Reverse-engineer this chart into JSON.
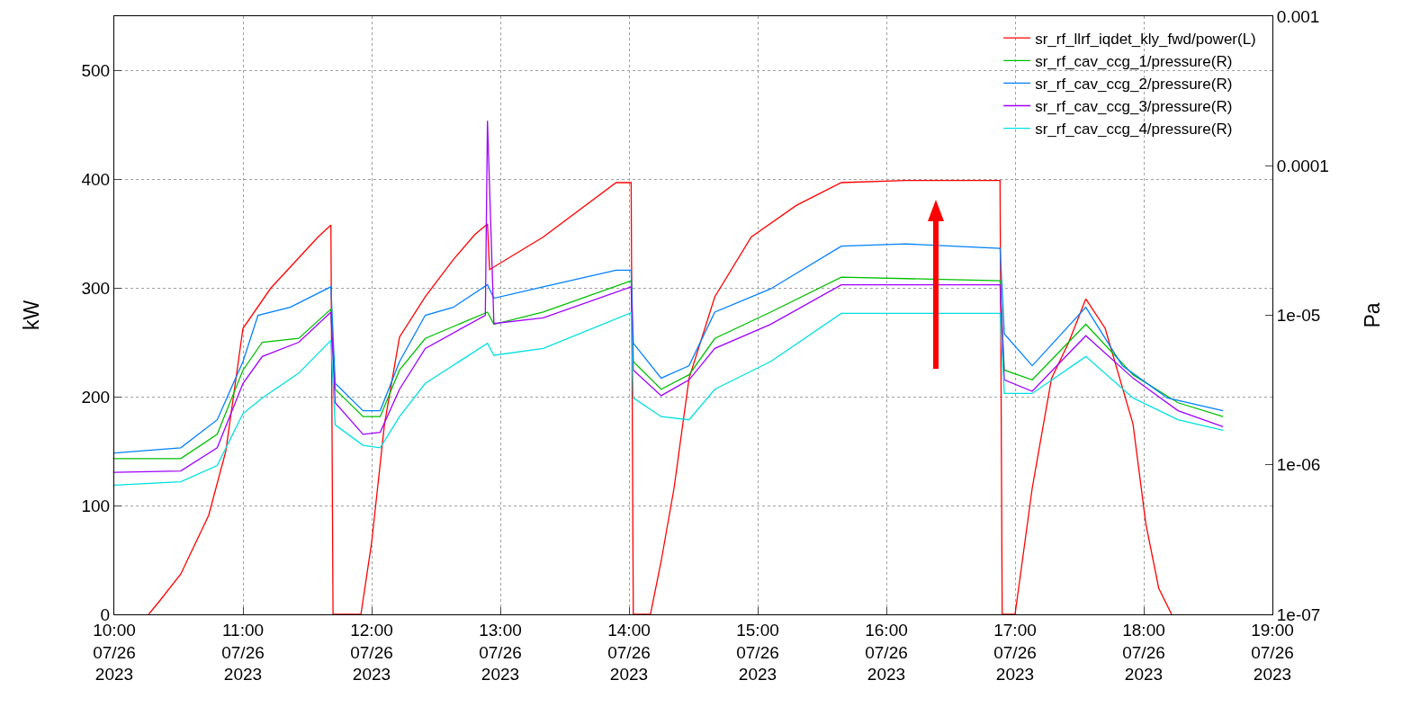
{
  "chart_data": {
    "type": "line",
    "ylabel": "kW",
    "y2label": "Pa",
    "grid": true,
    "legend": "top right",
    "line_style": "solid",
    "marker": "none",
    "log": "y2",
    "xlim": [
      "2023-07-26T10:00",
      "2023-07-26T19:00"
    ],
    "xticks": [
      {
        "value": "2023-07-26T10:00",
        "label": "10:00\n07/26\n2023"
      },
      {
        "value": "2023-07-26T11:00",
        "label": "11:00\n07/26\n2023"
      },
      {
        "value": "2023-07-26T12:00",
        "label": "12:00\n07/26\n2023"
      },
      {
        "value": "2023-07-26T13:00",
        "label": "13:00\n07/26\n2023"
      },
      {
        "value": "2023-07-26T14:00",
        "label": "14:00\n07/26\n2023"
      },
      {
        "value": "2023-07-26T15:00",
        "label": "15:00\n07/26\n2023"
      },
      {
        "value": "2023-07-26T16:00",
        "label": "16:00\n07/26\n2023"
      },
      {
        "value": "2023-07-26T17:00",
        "label": "17:00\n07/26\n2023"
      },
      {
        "value": "2023-07-26T18:00",
        "label": "18:00\n07/26\n2023"
      },
      {
        "value": "2023-07-26T19:00",
        "label": "19:00\n07/26\n2023"
      }
    ],
    "ylim": [
      0,
      550
    ],
    "yticks": [
      0,
      100,
      200,
      300,
      400,
      500
    ],
    "y2lim": [
      1e-07,
      0.001
    ],
    "y2ticks": [
      {
        "value": 1e-07,
        "label": "1e-07"
      },
      {
        "value": 1e-06,
        "label": "1e-06"
      },
      {
        "value": 1e-05,
        "label": "1e-05"
      },
      {
        "value": 0.0001,
        "label": "0.0001"
      },
      {
        "value": 0.001,
        "label": "0.001"
      }
    ],
    "series": [
      {
        "name": "sr_rf_llrf_iqdet_kly_fwd/power(L)",
        "color": "#ff0000",
        "x": [
          "2023-07-26T10:16",
          "2023-07-26T10:21",
          "2023-07-26T10:31",
          "2023-07-26T10:44",
          "2023-07-26T10:52",
          "2023-07-26T11:00",
          "2023-07-26T11:13",
          "2023-07-26T11:35",
          "2023-07-26T11:41",
          "2023-07-26T11:42",
          "2023-07-26T11:55",
          "2023-07-26T12:00",
          "2023-07-26T12:06",
          "2023-07-26T12:13",
          "2023-07-26T12:25",
          "2023-07-26T12:38",
          "2023-07-26T12:48",
          "2023-07-26T12:54",
          "2023-07-26T12:55",
          "2023-07-26T13:20",
          "2023-07-26T13:54",
          "2023-07-26T14:01",
          "2023-07-26T14:02",
          "2023-07-26T14:10",
          "2023-07-26T14:15",
          "2023-07-26T14:21",
          "2023-07-26T14:28",
          "2023-07-26T14:40",
          "2023-07-26T14:57",
          "2023-07-26T15:18",
          "2023-07-26T15:39",
          "2023-07-26T16:09",
          "2023-07-26T16:53",
          "2023-07-26T16:54",
          "2023-07-26T17:00",
          "2023-07-26T17:08",
          "2023-07-26T17:17",
          "2023-07-26T17:25",
          "2023-07-26T17:33",
          "2023-07-26T17:42",
          "2023-07-26T17:55",
          "2023-07-26T18:01",
          "2023-07-26T18:07",
          "2023-07-26T18:13"
        ],
        "values": [
          0,
          12,
          37,
          91,
          150,
          263,
          300,
          347,
          358,
          0,
          0,
          66,
          175,
          255,
          292,
          326,
          349,
          359,
          317,
          347,
          397,
          397,
          0,
          0,
          49,
          116,
          217,
          292,
          347,
          376,
          397,
          399,
          399,
          0,
          0,
          116,
          217,
          250,
          290,
          263,
          175,
          83,
          24,
          0
        ]
      },
      {
        "name": "sr_rf_cav_ccg_1/pressure(R)",
        "color": "#00c000",
        "axis": "y2",
        "x": [
          "2023-07-26T10:00",
          "2023-07-26T10:31",
          "2023-07-26T10:48",
          "2023-07-26T11:00",
          "2023-07-26T11:09",
          "2023-07-26T11:26",
          "2023-07-26T11:41",
          "2023-07-26T11:43",
          "2023-07-26T11:56",
          "2023-07-26T12:04",
          "2023-07-26T12:13",
          "2023-07-26T12:25",
          "2023-07-26T12:54",
          "2023-07-26T12:57",
          "2023-07-26T13:20",
          "2023-07-26T14:01",
          "2023-07-26T14:02",
          "2023-07-26T14:15",
          "2023-07-26T14:28",
          "2023-07-26T14:40",
          "2023-07-26T15:06",
          "2023-07-26T15:39",
          "2023-07-26T16:53",
          "2023-07-26T16:55",
          "2023-07-26T17:08",
          "2023-07-26T17:33",
          "2023-07-26T17:55",
          "2023-07-26T18:16",
          "2023-07-26T18:37"
        ],
        "values": [
          1.1e-06,
          1.1e-06,
          1.6e-06,
          4.3e-06,
          6.6e-06,
          7e-06,
          1.1e-05,
          3.2e-06,
          2.1e-06,
          2.1e-06,
          4.3e-06,
          7e-06,
          1.05e-05,
          8.7e-06,
          1.05e-05,
          1.7e-05,
          4.9e-06,
          3.2e-06,
          4e-06,
          7e-06,
          1.05e-05,
          1.8e-05,
          1.7e-05,
          4.3e-06,
          3.7e-06,
          8.7e-06,
          4e-06,
          2.6e-06,
          2.1e-06
        ]
      },
      {
        "name": "sr_rf_cav_ccg_2/pressure(R)",
        "color": "#0080ff",
        "axis": "y2",
        "x": [
          "2023-07-26T10:00",
          "2023-07-26T10:31",
          "2023-07-26T10:48",
          "2023-07-26T11:00",
          "2023-07-26T11:07",
          "2023-07-26T11:22",
          "2023-07-26T11:41",
          "2023-07-26T11:43",
          "2023-07-26T11:56",
          "2023-07-26T12:04",
          "2023-07-26T12:13",
          "2023-07-26T12:25",
          "2023-07-26T12:38",
          "2023-07-26T12:54",
          "2023-07-26T12:57",
          "2023-07-26T13:20",
          "2023-07-26T13:54",
          "2023-07-26T14:01",
          "2023-07-26T14:02",
          "2023-07-26T14:15",
          "2023-07-26T14:28",
          "2023-07-26T14:40",
          "2023-07-26T15:06",
          "2023-07-26T15:39",
          "2023-07-26T16:09",
          "2023-07-26T16:53",
          "2023-07-26T16:55",
          "2023-07-26T17:08",
          "2023-07-26T17:33",
          "2023-07-26T17:50",
          "2023-07-26T18:11",
          "2023-07-26T18:37"
        ],
        "values": [
          1.2e-06,
          1.3e-06,
          2e-06,
          4.9e-06,
          1e-05,
          1.13e-05,
          1.55e-05,
          3.5e-06,
          2.3e-06,
          2.3e-06,
          4.9e-06,
          1e-05,
          1.13e-05,
          1.6e-05,
          1.3e-05,
          1.55e-05,
          2e-05,
          2e-05,
          6.5e-06,
          3.8e-06,
          4.6e-06,
          1.05e-05,
          1.5e-05,
          2.9e-05,
          3e-05,
          2.8e-05,
          7.5e-06,
          4.6e-06,
          1.13e-05,
          4.6e-06,
          2.8e-06,
          2.3e-06
        ]
      },
      {
        "name": "sr_rf_cav_ccg_3/pressure(R)",
        "color": "#a000ff",
        "axis": "y2",
        "x": [
          "2023-07-26T10:00",
          "2023-07-26T10:31",
          "2023-07-26T10:48",
          "2023-07-26T11:00",
          "2023-07-26T11:09",
          "2023-07-26T11:26",
          "2023-07-26T11:41",
          "2023-07-26T11:43",
          "2023-07-26T11:56",
          "2023-07-26T12:04",
          "2023-07-26T12:13",
          "2023-07-26T12:25",
          "2023-07-26T12:53",
          "2023-07-26T12:54",
          "2023-07-26T12:57",
          "2023-07-26T13:20",
          "2023-07-26T14:01",
          "2023-07-26T14:02",
          "2023-07-26T14:15",
          "2023-07-26T14:28",
          "2023-07-26T14:40",
          "2023-07-26T15:06",
          "2023-07-26T15:39",
          "2023-07-26T16:53",
          "2023-07-26T16:55",
          "2023-07-26T17:08",
          "2023-07-26T17:33",
          "2023-07-26T17:55",
          "2023-07-26T18:16",
          "2023-07-26T18:37"
        ],
        "values": [
          8.9e-07,
          9.1e-07,
          1.3e-06,
          3.5e-06,
          5.3e-06,
          6.6e-06,
          1.05e-05,
          2.6e-06,
          1.6e-06,
          1.65e-06,
          3.2e-06,
          6e-06,
          1e-05,
          0.0002,
          8.8e-06,
          9.6e-06,
          1.55e-05,
          4.3e-06,
          2.9e-06,
          3.7e-06,
          6e-06,
          8.7e-06,
          1.6e-05,
          1.6e-05,
          3.7e-06,
          3.1e-06,
          7.3e-06,
          3.8e-06,
          2.3e-06,
          1.8e-06
        ]
      },
      {
        "name": "sr_rf_cav_ccg_4/pressure(R)",
        "color": "#00e0e0",
        "axis": "y2",
        "x": [
          "2023-07-26T10:00",
          "2023-07-26T10:31",
          "2023-07-26T10:48",
          "2023-07-26T11:00",
          "2023-07-26T11:09",
          "2023-07-26T11:26",
          "2023-07-26T11:41",
          "2023-07-26T11:43",
          "2023-07-26T11:56",
          "2023-07-26T12:04",
          "2023-07-26T12:13",
          "2023-07-26T12:25",
          "2023-07-26T12:54",
          "2023-07-26T12:57",
          "2023-07-26T13:20",
          "2023-07-26T14:01",
          "2023-07-26T14:02",
          "2023-07-26T14:15",
          "2023-07-26T14:28",
          "2023-07-26T14:40",
          "2023-07-26T15:06",
          "2023-07-26T15:39",
          "2023-07-26T16:53",
          "2023-07-26T16:55",
          "2023-07-26T17:08",
          "2023-07-26T17:33",
          "2023-07-26T17:55",
          "2023-07-26T18:16",
          "2023-07-26T18:37"
        ],
        "values": [
          7.3e-07,
          7.7e-07,
          9.9e-07,
          2.2e-06,
          2.8e-06,
          4.1e-06,
          6.8e-06,
          1.85e-06,
          1.35e-06,
          1.3e-06,
          2.1e-06,
          3.5e-06,
          6.5e-06,
          5.4e-06,
          6e-06,
          1.04e-05,
          2.8e-06,
          2.1e-06,
          2e-06,
          3.2e-06,
          4.9e-06,
          1.03e-05,
          1.03e-05,
          3e-06,
          3e-06,
          5.3e-06,
          2.8e-06,
          2e-06,
          1.7e-06
        ]
      }
    ]
  }
}
